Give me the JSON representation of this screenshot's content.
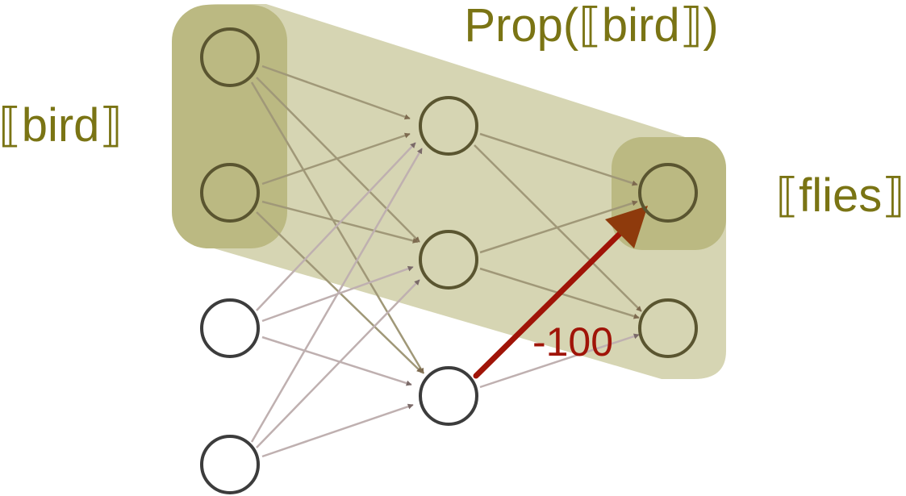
{
  "labels": {
    "prop_bird": "Prop(⟦bird⟧)",
    "bird": "⟦bird⟧",
    "flies": "⟦flies⟧",
    "weight": "-100"
  },
  "colors": {
    "label_olive": "#7a7414",
    "weight_red": "#a01408",
    "region_light": "#d6d5b3",
    "region_dark": "#bbb982",
    "highlighted_node": "#5a5530",
    "plain_node": "#3c3c3c"
  }
}
